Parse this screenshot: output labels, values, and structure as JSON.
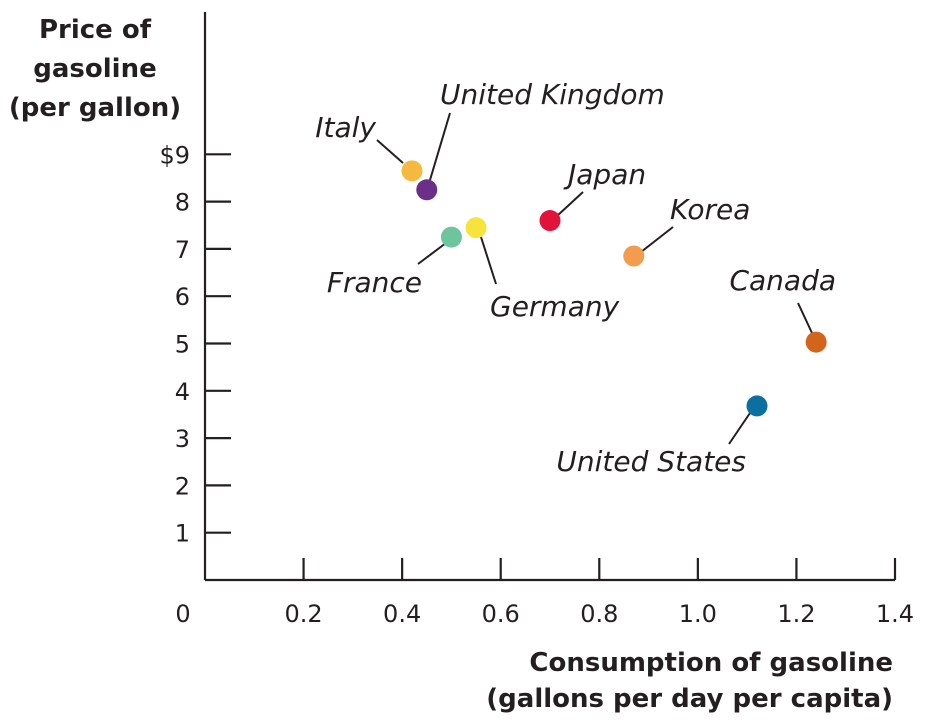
{
  "chart_data": {
    "type": "scatter",
    "ylabel_lines": [
      "Price of",
      "gasoline",
      "(per gallon)"
    ],
    "xlabel_lines": [
      "Consumption of gasoline",
      "(gallons per day per capita)"
    ],
    "xlim": [
      0,
      1.4
    ],
    "ylim": [
      0,
      12
    ],
    "x_ticks": [
      0.2,
      0.4,
      0.6,
      0.8,
      1.0,
      1.2,
      1.4
    ],
    "x_tick_labels": [
      "0.2",
      "0.4",
      "0.6",
      "0.8",
      "1.0",
      "1.2",
      "1.4"
    ],
    "y_ticks": [
      1,
      2,
      3,
      4,
      5,
      6,
      7,
      8,
      9
    ],
    "y_tick_labels": [
      "1",
      "2",
      "3",
      "4",
      "5",
      "6",
      "7",
      "8",
      "$9"
    ],
    "origin_label": "0",
    "grid": false,
    "points": [
      {
        "label": "Italy",
        "x": 0.42,
        "y": 8.65,
        "color": "#f4b93e"
      },
      {
        "label": "United Kingdom",
        "x": 0.45,
        "y": 8.25,
        "color": "#6b2f8a"
      },
      {
        "label": "France",
        "x": 0.5,
        "y": 7.25,
        "color": "#6cc59c"
      },
      {
        "label": "Germany",
        "x": 0.55,
        "y": 7.45,
        "color": "#f6e33d"
      },
      {
        "label": "Japan",
        "x": 0.7,
        "y": 7.6,
        "color": "#e2123a"
      },
      {
        "label": "Korea",
        "x": 0.87,
        "y": 6.85,
        "color": "#f29c4e"
      },
      {
        "label": "Canada",
        "x": 1.24,
        "y": 5.03,
        "color": "#d2641c"
      },
      {
        "label": "United States",
        "x": 1.12,
        "y": 3.68,
        "color": "#0b6fa0"
      }
    ]
  }
}
